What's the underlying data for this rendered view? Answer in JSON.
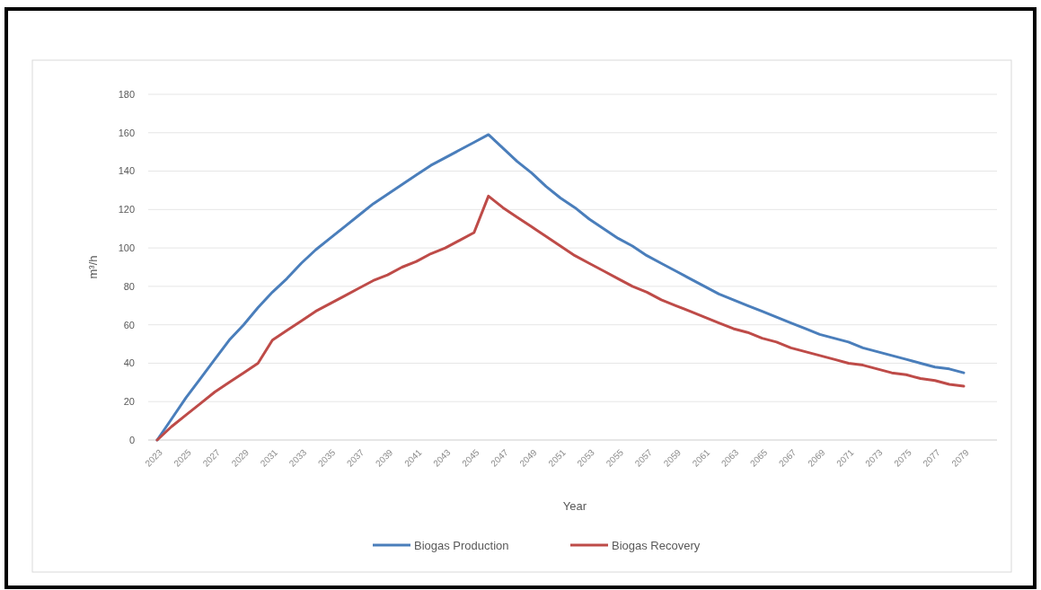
{
  "chart_data": {
    "type": "line",
    "xlabel": "Year",
    "ylabel": "m³/h",
    "categories": [
      "2023",
      null,
      "2025",
      null,
      "2027",
      null,
      "2029",
      null,
      "2031",
      null,
      "2033",
      null,
      "2035",
      null,
      "2037",
      null,
      "2039",
      null,
      "2041",
      null,
      "2043",
      null,
      "2045",
      null,
      "2047",
      null,
      "2049",
      null,
      "2051",
      null,
      "2053",
      null,
      "2055",
      null,
      "2057",
      null,
      "2059",
      null,
      "2061",
      null,
      "2063",
      null,
      "2065",
      null,
      "2067",
      null,
      "2069",
      null,
      "2071",
      null,
      "2073",
      null,
      "2075",
      null,
      "2077",
      null,
      "2079"
    ],
    "series": [
      {
        "name": "Biogas Production",
        "color": "#4a7ebb",
        "values": [
          0,
          11,
          22,
          32,
          42,
          52,
          60,
          69,
          77,
          84,
          92,
          99,
          105,
          111,
          117,
          123,
          128,
          133,
          138,
          143,
          147,
          151,
          155,
          159,
          152,
          145,
          139,
          132,
          126,
          121,
          115,
          110,
          105,
          101,
          96,
          92,
          88,
          84,
          80,
          76,
          73,
          70,
          67,
          64,
          61,
          58,
          55,
          53,
          51,
          48,
          46,
          44,
          42,
          40,
          38,
          37,
          35
        ]
      },
      {
        "name": "Biogas Recovery",
        "color": "#be4b48",
        "values": [
          0,
          7,
          13,
          19,
          25,
          30,
          35,
          40,
          52,
          57,
          62,
          67,
          71,
          75,
          79,
          83,
          86,
          90,
          93,
          97,
          100,
          104,
          108,
          127,
          121,
          116,
          111,
          106,
          101,
          96,
          92,
          88,
          84,
          80,
          77,
          73,
          70,
          67,
          64,
          61,
          58,
          56,
          53,
          51,
          48,
          46,
          44,
          42,
          40,
          39,
          37,
          35,
          34,
          32,
          31,
          29,
          28
        ]
      }
    ],
    "ylim": [
      0,
      180
    ],
    "yticks": [
      0,
      20,
      40,
      60,
      80,
      100,
      120,
      140,
      160,
      180
    ],
    "grid": "y",
    "legend": "bottom",
    "marker": "none",
    "line_style": "solid"
  }
}
